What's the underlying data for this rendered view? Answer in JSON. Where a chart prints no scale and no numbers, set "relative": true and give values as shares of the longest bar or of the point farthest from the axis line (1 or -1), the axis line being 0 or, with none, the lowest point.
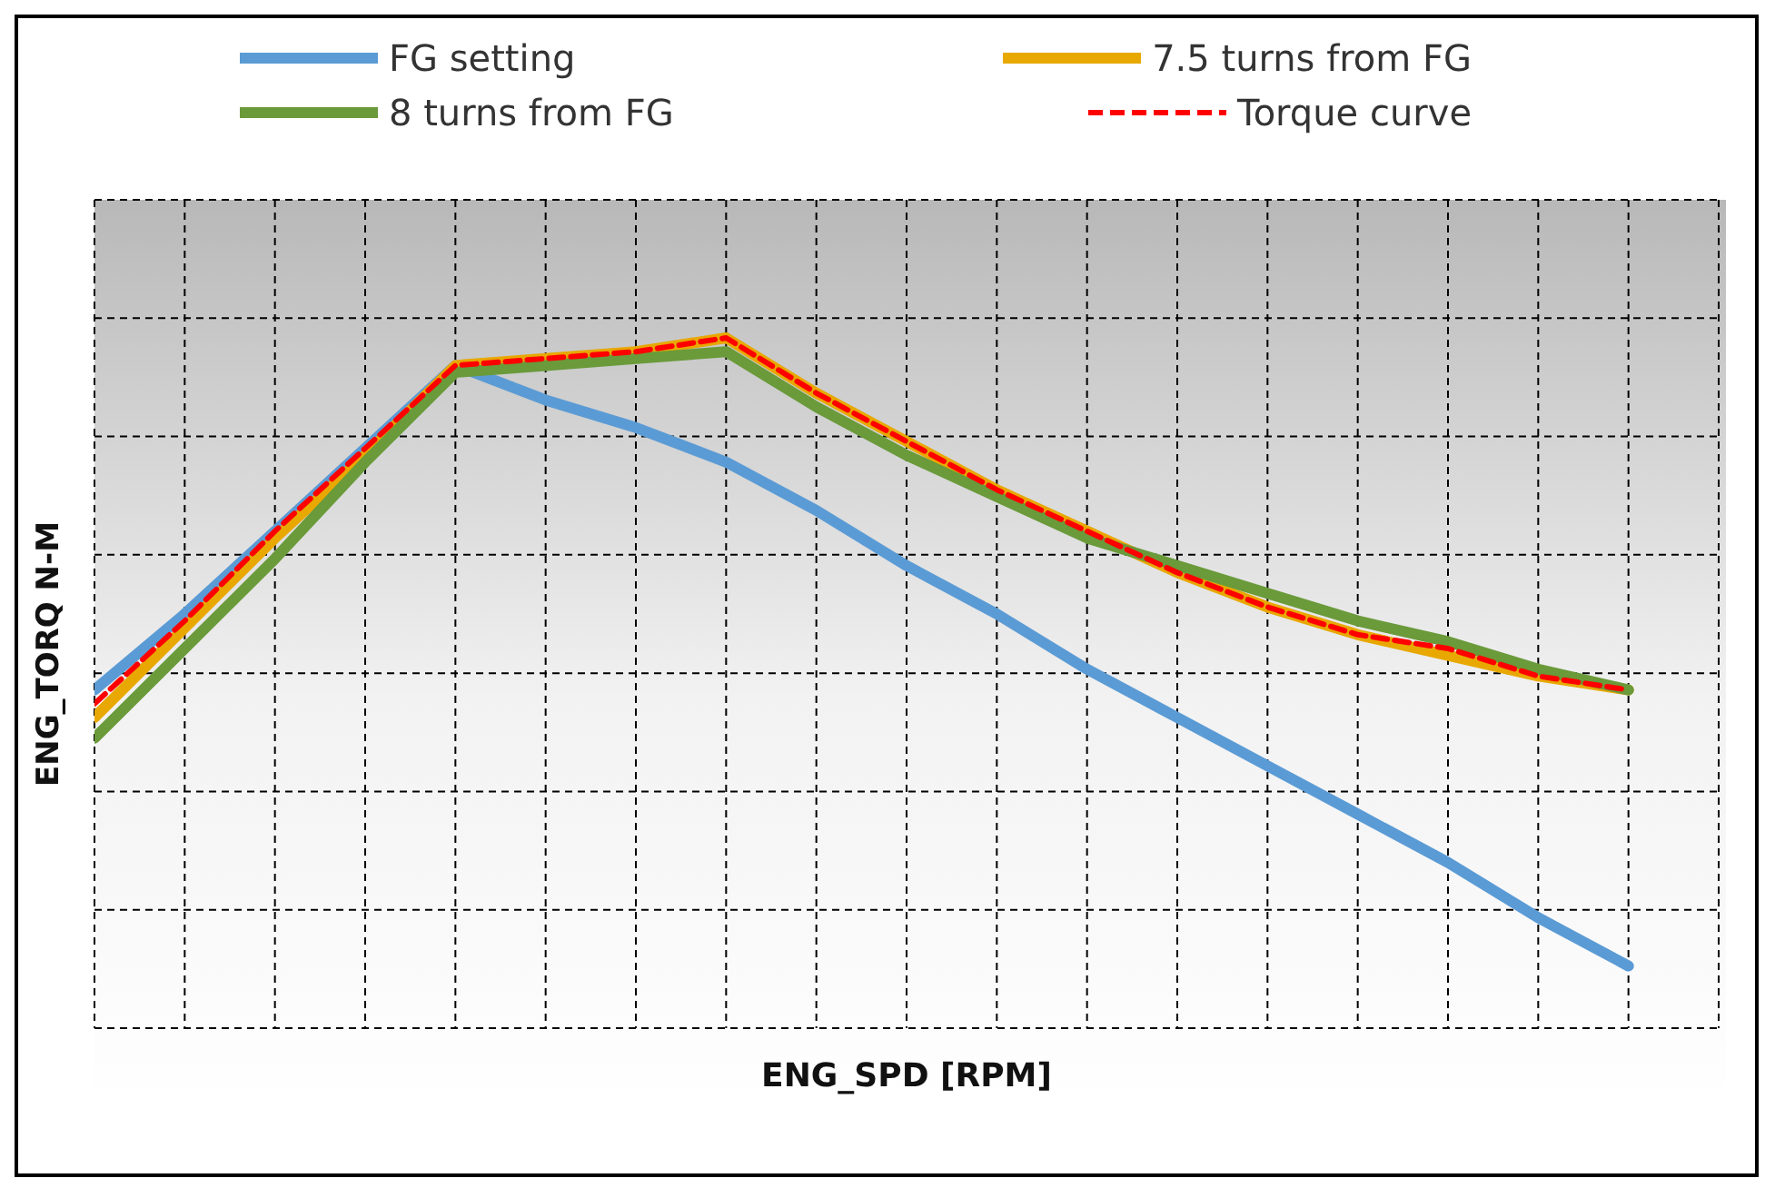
{
  "chart_data": {
    "type": "line",
    "relative": true,
    "xlabel": "ENG_SPD  [RPM]",
    "ylabel": "ENG_TORQ   N-M",
    "categories": [
      null,
      null,
      null,
      null,
      null,
      null,
      null,
      null,
      null,
      null,
      null,
      null,
      null,
      null,
      null,
      null,
      null,
      null
    ],
    "series": [
      {
        "name": "FG setting",
        "color": "#5b9bd5",
        "line_style": "solid",
        "values": [
          0.49,
          0.6,
          0.72,
          0.84,
          0.96,
          0.91,
          0.87,
          0.82,
          0.75,
          0.67,
          0.6,
          0.52,
          0.45,
          0.38,
          0.31,
          0.24,
          0.16,
          0.09
        ]
      },
      {
        "name": "7.5 turns from FG",
        "color": "#e8a800",
        "line_style": "solid",
        "values": [
          0.45,
          0.58,
          0.71,
          0.83,
          0.96,
          0.97,
          0.98,
          1.0,
          0.92,
          0.85,
          0.78,
          0.72,
          0.66,
          0.61,
          0.57,
          0.54,
          0.51,
          0.49
        ]
      },
      {
        "name": "8 turns from FG",
        "color": "#6a9a3a",
        "line_style": "solid",
        "values": [
          0.42,
          0.55,
          0.68,
          0.82,
          0.95,
          0.96,
          0.97,
          0.98,
          0.9,
          0.83,
          0.77,
          0.71,
          0.67,
          0.63,
          0.59,
          0.56,
          0.52,
          0.49
        ]
      },
      {
        "name": "Torque curve",
        "color": "#ff0000",
        "line_style": "dashed",
        "values": [
          0.47,
          0.59,
          0.72,
          0.84,
          0.96,
          0.97,
          0.98,
          1.0,
          0.92,
          0.85,
          0.78,
          0.72,
          0.66,
          0.61,
          0.57,
          0.55,
          0.51,
          0.49
        ]
      }
    ],
    "grid": true,
    "legend": "top",
    "marker": "none"
  }
}
